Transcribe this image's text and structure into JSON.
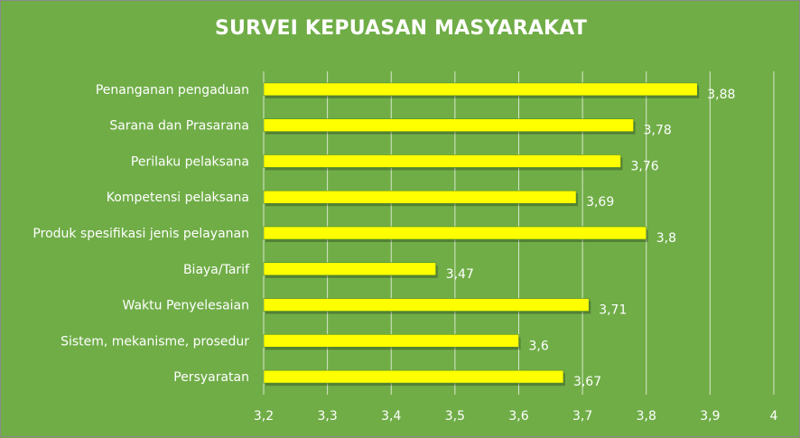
{
  "chart_data": {
    "type": "bar",
    "orientation": "horizontal",
    "title": "SURVEI KEPUASAN MASYARAKAT",
    "categories": [
      "Penanganan pengaduan",
      "Sarana dan Prasarana",
      "Perilaku pelaksana",
      "Kompetensi pelaksana",
      "Produk spesifikasi jenis pelayanan",
      "Biaya/Tarif",
      "Waktu Penyelesaian",
      "Sistem, mekanisme, prosedur",
      "Persyaratan"
    ],
    "values": [
      3.88,
      3.78,
      3.76,
      3.69,
      3.8,
      3.47,
      3.71,
      3.6,
      3.67
    ],
    "value_labels": [
      "3,88",
      "3,78",
      "3,76",
      "3,69",
      "3,8",
      "3,47",
      "3,71",
      "3,6",
      "3,67"
    ],
    "xlim": [
      3.2,
      4
    ],
    "xticks": [
      3.2,
      3.3,
      3.4,
      3.5,
      3.6,
      3.7,
      3.8,
      3.9,
      4
    ],
    "xtick_labels": [
      "3,2",
      "3,3",
      "3,4",
      "3,5",
      "3,6",
      "3,7",
      "3,8",
      "3,9",
      "4"
    ],
    "xlabel": "",
    "ylabel": "",
    "grid": true,
    "legend": "none"
  },
  "colors": {
    "background": "#70AD47",
    "bar": "#FFFF00",
    "bar_outline": "#4F8A2A",
    "gridline": "#D9E8CC",
    "text": "#FFFFFF"
  }
}
